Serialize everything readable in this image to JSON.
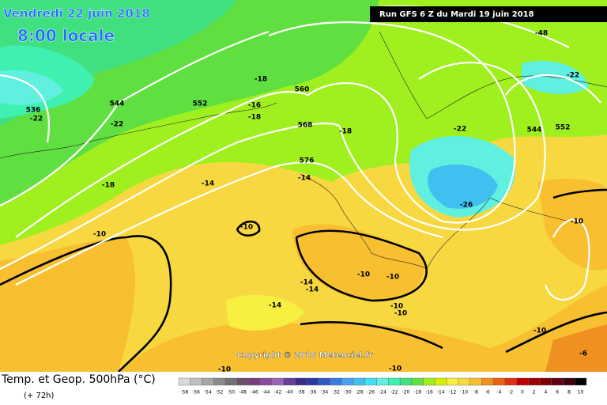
{
  "header": {
    "date": "Vendredi 22 juin 2018",
    "time": "8:00 locale",
    "run": "Run GFS 6 Z du Mardi 19 juin 2018"
  },
  "copyright": "Copyright © 2018 Meteociel.fr",
  "footer": {
    "title": "Temp. et Geop. 500hPa (°C)",
    "step": "(+ 72h)"
  },
  "map": {
    "labels": [
      "-48",
      "-18",
      "560",
      "552",
      "544",
      "536",
      "-22",
      "-22",
      "-16",
      "-18",
      "568",
      "-18",
      "-22",
      "544",
      "552",
      "-22",
      "576",
      "-14",
      "-14",
      "-18",
      "-26",
      "-10",
      "-10",
      "-10",
      "-10",
      "-10",
      "-14",
      "-14",
      "-14",
      "-10",
      "-10",
      "-10",
      "-10",
      "-10",
      "-6"
    ]
  },
  "legend": {
    "values": [
      -58,
      -56,
      -54,
      -52,
      -50,
      -48,
      -46,
      -44,
      -42,
      -40,
      -38,
      -36,
      -34,
      -32,
      -30,
      -28,
      -26,
      -24,
      -22,
      -20,
      -18,
      -16,
      -14,
      -12,
      -10,
      -8,
      -6,
      -4,
      -2,
      0,
      2,
      4,
      6,
      8,
      10
    ],
    "colors": [
      "#d9d9d9",
      "#bfbfbf",
      "#a6a6a6",
      "#8c8c8c",
      "#737373",
      "#6b4f6b",
      "#7a3d7a",
      "#8a4a9a",
      "#9a66b3",
      "#6a3d9a",
      "#3d2d8a",
      "#2a3aa0",
      "#2e5ac0",
      "#3a7ae0",
      "#4aa0f0",
      "#40c0f0",
      "#40e0f0",
      "#60f0e0",
      "#40f0b0",
      "#40e080",
      "#60e040",
      "#a0f020",
      "#d8f000",
      "#f8f040",
      "#f8d840",
      "#f8c030",
      "#f09020",
      "#e86010",
      "#e03010",
      "#c00000",
      "#a00000",
      "#800000",
      "#600010",
      "#400010",
      "#000000"
    ]
  }
}
